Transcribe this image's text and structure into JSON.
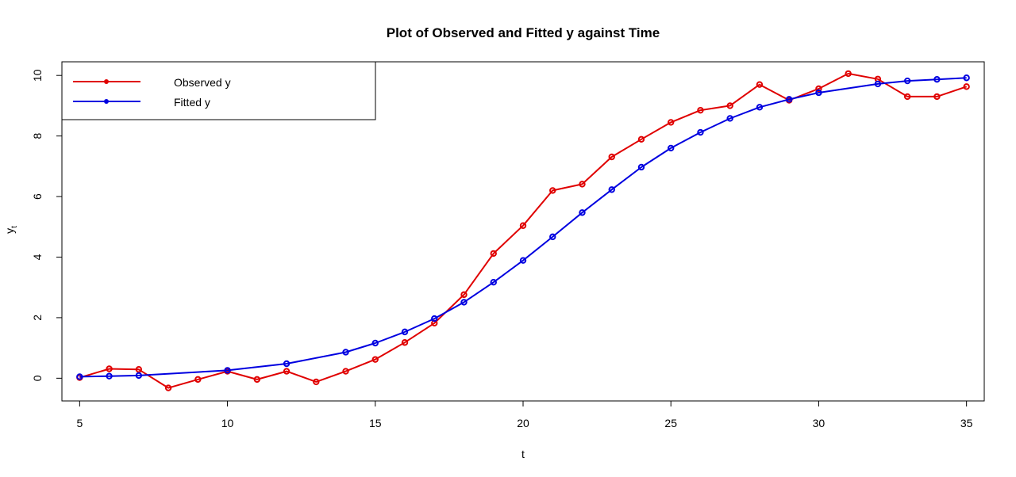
{
  "chart_data": {
    "type": "line",
    "title": "Plot of Observed and Fitted y against Time",
    "xlabel": "t",
    "ylabel": "y",
    "ylabel_subscript": "t",
    "xlim": [
      4.4,
      35.6
    ],
    "ylim": [
      -0.75,
      10.45
    ],
    "x_ticks": [
      5,
      10,
      15,
      20,
      25,
      30,
      35
    ],
    "y_ticks": [
      0,
      2,
      4,
      6,
      8,
      10
    ],
    "grid": false,
    "legend": {
      "position": "top-left"
    },
    "series": [
      {
        "name": "Observed y",
        "color": "#e00000",
        "x": [
          5,
          6,
          7,
          8,
          9,
          10,
          11,
          12,
          13,
          14,
          15,
          16,
          17,
          18,
          19,
          20,
          21,
          22,
          23,
          24,
          25,
          26,
          27,
          28,
          29,
          30,
          31,
          32,
          33,
          34,
          35
        ],
        "y": [
          0.02,
          0.31,
          0.29,
          -0.32,
          -0.04,
          0.23,
          -0.04,
          0.23,
          -0.12,
          0.23,
          0.62,
          1.18,
          1.82,
          2.76,
          4.12,
          5.04,
          6.2,
          6.41,
          7.31,
          7.89,
          8.45,
          8.85,
          9.0,
          9.7,
          9.18,
          9.56,
          10.06,
          9.88,
          9.3,
          9.3,
          9.63
        ]
      },
      {
        "name": "Fitted y",
        "color": "#0000e0",
        "x": [
          5,
          6,
          7,
          10,
          12,
          14,
          15,
          16,
          17,
          18,
          19,
          20,
          21,
          22,
          23,
          24,
          25,
          26,
          27,
          28,
          29,
          30,
          32,
          33,
          34,
          35
        ],
        "y": [
          0.05,
          0.07,
          0.09,
          0.26,
          0.48,
          0.86,
          1.16,
          1.53,
          1.97,
          2.51,
          3.17,
          3.89,
          4.67,
          5.47,
          6.23,
          6.97,
          7.6,
          8.12,
          8.58,
          8.95,
          9.21,
          9.43,
          9.72,
          9.82,
          9.87,
          9.92
        ]
      }
    ]
  }
}
